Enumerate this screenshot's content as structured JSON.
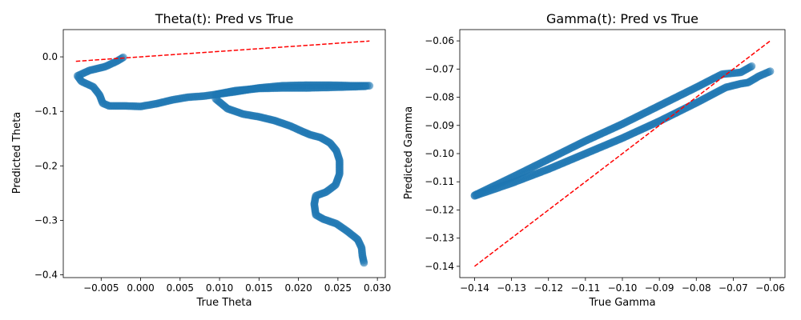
{
  "chart_data": [
    {
      "type": "scatter",
      "title": "Theta(t): Pred vs True",
      "xlabel": "True Theta",
      "ylabel": "Predicted Theta",
      "xlim": [
        -0.0098,
        0.031
      ],
      "ylim": [
        -0.405,
        0.05
      ],
      "xticks": [
        -0.005,
        0.0,
        0.005,
        0.01,
        0.015,
        0.02,
        0.025,
        0.03
      ],
      "xtick_labels": [
        "−0.005",
        "0.000",
        "0.005",
        "0.010",
        "0.015",
        "0.020",
        "0.025",
        "0.030"
      ],
      "yticks": [
        0.0,
        -0.1,
        -0.2,
        -0.3,
        -0.4
      ],
      "ytick_labels": [
        "0.0",
        "−0.1",
        "−0.2",
        "−0.3",
        "−0.4"
      ],
      "grid": false,
      "point_color": "#1f77b4",
      "reference_line": {
        "style": "dashed",
        "color": "#ff0000",
        "x": [
          -0.0082,
          0.029
        ],
        "y": [
          -0.0082,
          0.029
        ]
      },
      "trajectories": [
        {
          "x": [
            -0.0022,
            -0.003,
            -0.0045,
            -0.0065,
            -0.008,
            -0.0075,
            -0.006,
            -0.0052,
            -0.0048,
            -0.004,
            -0.003,
            -0.002,
            0.0,
            0.002,
            0.004,
            0.006,
            0.008,
            0.0095,
            0.012,
            0.015,
            0.018,
            0.021,
            0.024,
            0.027,
            0.029
          ],
          "y": [
            -0.001,
            -0.008,
            -0.018,
            -0.025,
            -0.035,
            -0.045,
            -0.055,
            -0.07,
            -0.085,
            -0.09,
            -0.09,
            -0.09,
            -0.091,
            -0.086,
            -0.079,
            -0.074,
            -0.072,
            -0.069,
            -0.064,
            -0.057,
            -0.053,
            -0.052,
            -0.052,
            -0.053,
            -0.053
          ]
        },
        {
          "x": [
            0.0095,
            0.011,
            0.013,
            0.015,
            0.017,
            0.019,
            0.0205,
            0.0215,
            0.0228,
            0.024,
            0.0248,
            0.0252,
            0.0252,
            0.0247,
            0.0235,
            0.0222,
            0.022,
            0.0222,
            0.0232,
            0.0248,
            0.0262,
            0.0275,
            0.028,
            0.0281,
            0.0283
          ],
          "y": [
            -0.077,
            -0.095,
            -0.105,
            -0.11,
            -0.117,
            -0.127,
            -0.137,
            -0.143,
            -0.148,
            -0.158,
            -0.172,
            -0.19,
            -0.215,
            -0.235,
            -0.248,
            -0.255,
            -0.27,
            -0.29,
            -0.298,
            -0.306,
            -0.32,
            -0.335,
            -0.35,
            -0.365,
            -0.378
          ]
        },
        {
          "x": [
            0.0095,
            0.012,
            0.015,
            0.018,
            0.021,
            0.024,
            0.0265,
            0.0285
          ],
          "y": [
            -0.069,
            -0.062,
            -0.058,
            -0.057,
            -0.057,
            -0.056,
            -0.055,
            -0.054
          ]
        }
      ]
    },
    {
      "type": "scatter",
      "title": "Gamma(t): Pred vs True",
      "xlabel": "True Gamma",
      "ylabel": "Predicted Gamma",
      "xlim": [
        -0.144,
        -0.056
      ],
      "ylim": [
        -0.144,
        -0.056
      ],
      "xticks": [
        -0.14,
        -0.13,
        -0.12,
        -0.11,
        -0.1,
        -0.09,
        -0.08,
        -0.07,
        -0.06
      ],
      "xtick_labels": [
        "−0.14",
        "−0.13",
        "−0.12",
        "−0.11",
        "−0.10",
        "−0.09",
        "−0.08",
        "−0.07",
        "−0.06"
      ],
      "yticks": [
        -0.06,
        -0.07,
        -0.08,
        -0.09,
        -0.1,
        -0.11,
        -0.12,
        -0.13,
        -0.14
      ],
      "ytick_labels": [
        "−0.06",
        "−0.07",
        "−0.08",
        "−0.09",
        "−0.10",
        "−0.11",
        "−0.12",
        "−0.13",
        "−0.14"
      ],
      "grid": false,
      "point_color": "#1f77b4",
      "reference_line": {
        "style": "dashed",
        "color": "#ff0000",
        "x": [
          -0.14,
          -0.06
        ],
        "y": [
          -0.14,
          -0.06
        ]
      },
      "trajectories": [
        {
          "x": [
            -0.14,
            -0.13,
            -0.12,
            -0.11,
            -0.1,
            -0.09,
            -0.08,
            -0.073,
            -0.068,
            -0.065
          ],
          "y": [
            -0.1148,
            -0.1085,
            -0.102,
            -0.0955,
            -0.0895,
            -0.083,
            -0.0765,
            -0.0718,
            -0.0712,
            -0.069
          ]
        },
        {
          "x": [
            -0.14,
            -0.13,
            -0.12,
            -0.11,
            -0.1,
            -0.09,
            -0.08,
            -0.072,
            -0.068,
            -0.066,
            -0.063,
            -0.06
          ],
          "y": [
            -0.115,
            -0.1105,
            -0.1055,
            -0.1,
            -0.0945,
            -0.0885,
            -0.082,
            -0.0765,
            -0.0752,
            -0.0748,
            -0.0725,
            -0.0708
          ]
        }
      ]
    }
  ]
}
